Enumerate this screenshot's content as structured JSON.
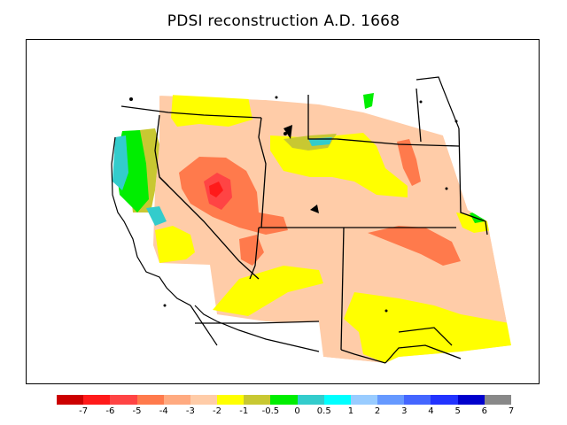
{
  "title": "PDSI reconstruction A.D. 1668",
  "legend": {
    "colors": [
      "#cc0000",
      "#ff1a1a",
      "#ff4444",
      "#ff7a4c",
      "#ffaa80",
      "#ffcca8",
      "#ffff00",
      "#c8c832",
      "#00ee00",
      "#33cccc",
      "#00ffff",
      "#99ccff",
      "#6699ff",
      "#4466ff",
      "#2233ff",
      "#0000cc",
      "#888888"
    ],
    "labels": [
      "-7",
      "-6",
      "-5",
      "-4",
      "-3",
      "-2",
      "-1",
      "-0.5",
      "0",
      "0.5",
      "1",
      "2",
      "3",
      "4",
      "5",
      "6",
      "7"
    ]
  }
}
